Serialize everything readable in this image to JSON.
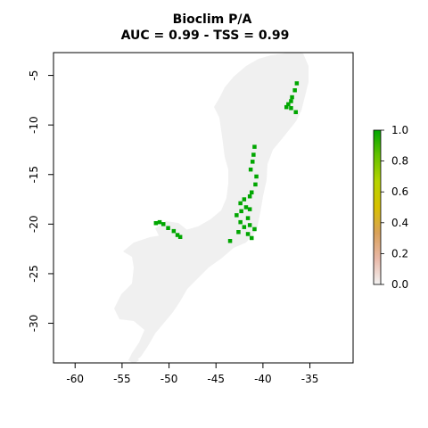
{
  "plot": {
    "title_line1": "Bioclim P/A",
    "title_line2": "AUC = 0.99 - TSS = 0.99"
  },
  "chart_data": {
    "type": "heatmap",
    "title": "Bioclim P/A",
    "subtitle": "AUC = 0.99 - TSS = 0.99",
    "xlim": [
      -62.3,
      -30.4
    ],
    "ylim": [
      -34,
      -2.7
    ],
    "x_ticks": [
      -60,
      -55,
      -50,
      -45,
      -40,
      -35
    ],
    "y_ticks": [
      -5,
      -10,
      -15,
      -20,
      -25,
      -30
    ],
    "colorbar": {
      "range": [
        0,
        1
      ],
      "ticks": [
        0.0,
        0.2,
        0.4,
        0.6,
        0.8,
        1.0
      ],
      "tick_labels": [
        "0.0",
        "0.2",
        "0.4",
        "0.6",
        "0.8",
        "1.0"
      ],
      "colors": [
        "#f2f2f2",
        "#e9b8a8",
        "#d9a15a",
        "#d8c000",
        "#b7d400",
        "#66c200",
        "#00a600"
      ]
    },
    "background_color": "#f2f2f2",
    "presence_color": "#00a600",
    "presence_value": 1,
    "absence_value": 0,
    "presence_cells": [
      [
        -36.4,
        -5.8
      ],
      [
        -36.6,
        -6.5
      ],
      [
        -36.9,
        -7.2
      ],
      [
        -37.0,
        -7.6
      ],
      [
        -37.3,
        -7.9
      ],
      [
        -37.0,
        -8.3
      ],
      [
        -37.5,
        -8.2
      ],
      [
        -36.5,
        -8.7
      ],
      [
        -40.9,
        -12.2
      ],
      [
        -41.0,
        -13.0
      ],
      [
        -41.1,
        -13.7
      ],
      [
        -41.3,
        -14.5
      ],
      [
        -40.7,
        -15.2
      ],
      [
        -40.8,
        -16.0
      ],
      [
        -41.2,
        -16.8
      ],
      [
        -41.4,
        -17.2
      ],
      [
        -42.0,
        -17.5
      ],
      [
        -42.4,
        -17.9
      ],
      [
        -41.8,
        -18.3
      ],
      [
        -41.4,
        -18.5
      ],
      [
        -42.8,
        -19.1
      ],
      [
        -41.6,
        -19.4
      ],
      [
        -42.4,
        -19.8
      ],
      [
        -42.0,
        -20.3
      ],
      [
        -42.6,
        -20.8
      ],
      [
        -41.6,
        -21.0
      ],
      [
        -41.2,
        -21.4
      ],
      [
        -40.9,
        -20.5
      ],
      [
        -41.4,
        -20.1
      ],
      [
        -42.3,
        -18.7
      ],
      [
        -51.4,
        -19.9
      ],
      [
        -51.0,
        -19.8
      ],
      [
        -50.6,
        -20.0
      ],
      [
        -50.1,
        -20.4
      ],
      [
        -49.5,
        -20.7
      ],
      [
        -49.1,
        -21.1
      ],
      [
        -48.8,
        -21.3
      ],
      [
        -43.5,
        -21.7
      ]
    ]
  }
}
